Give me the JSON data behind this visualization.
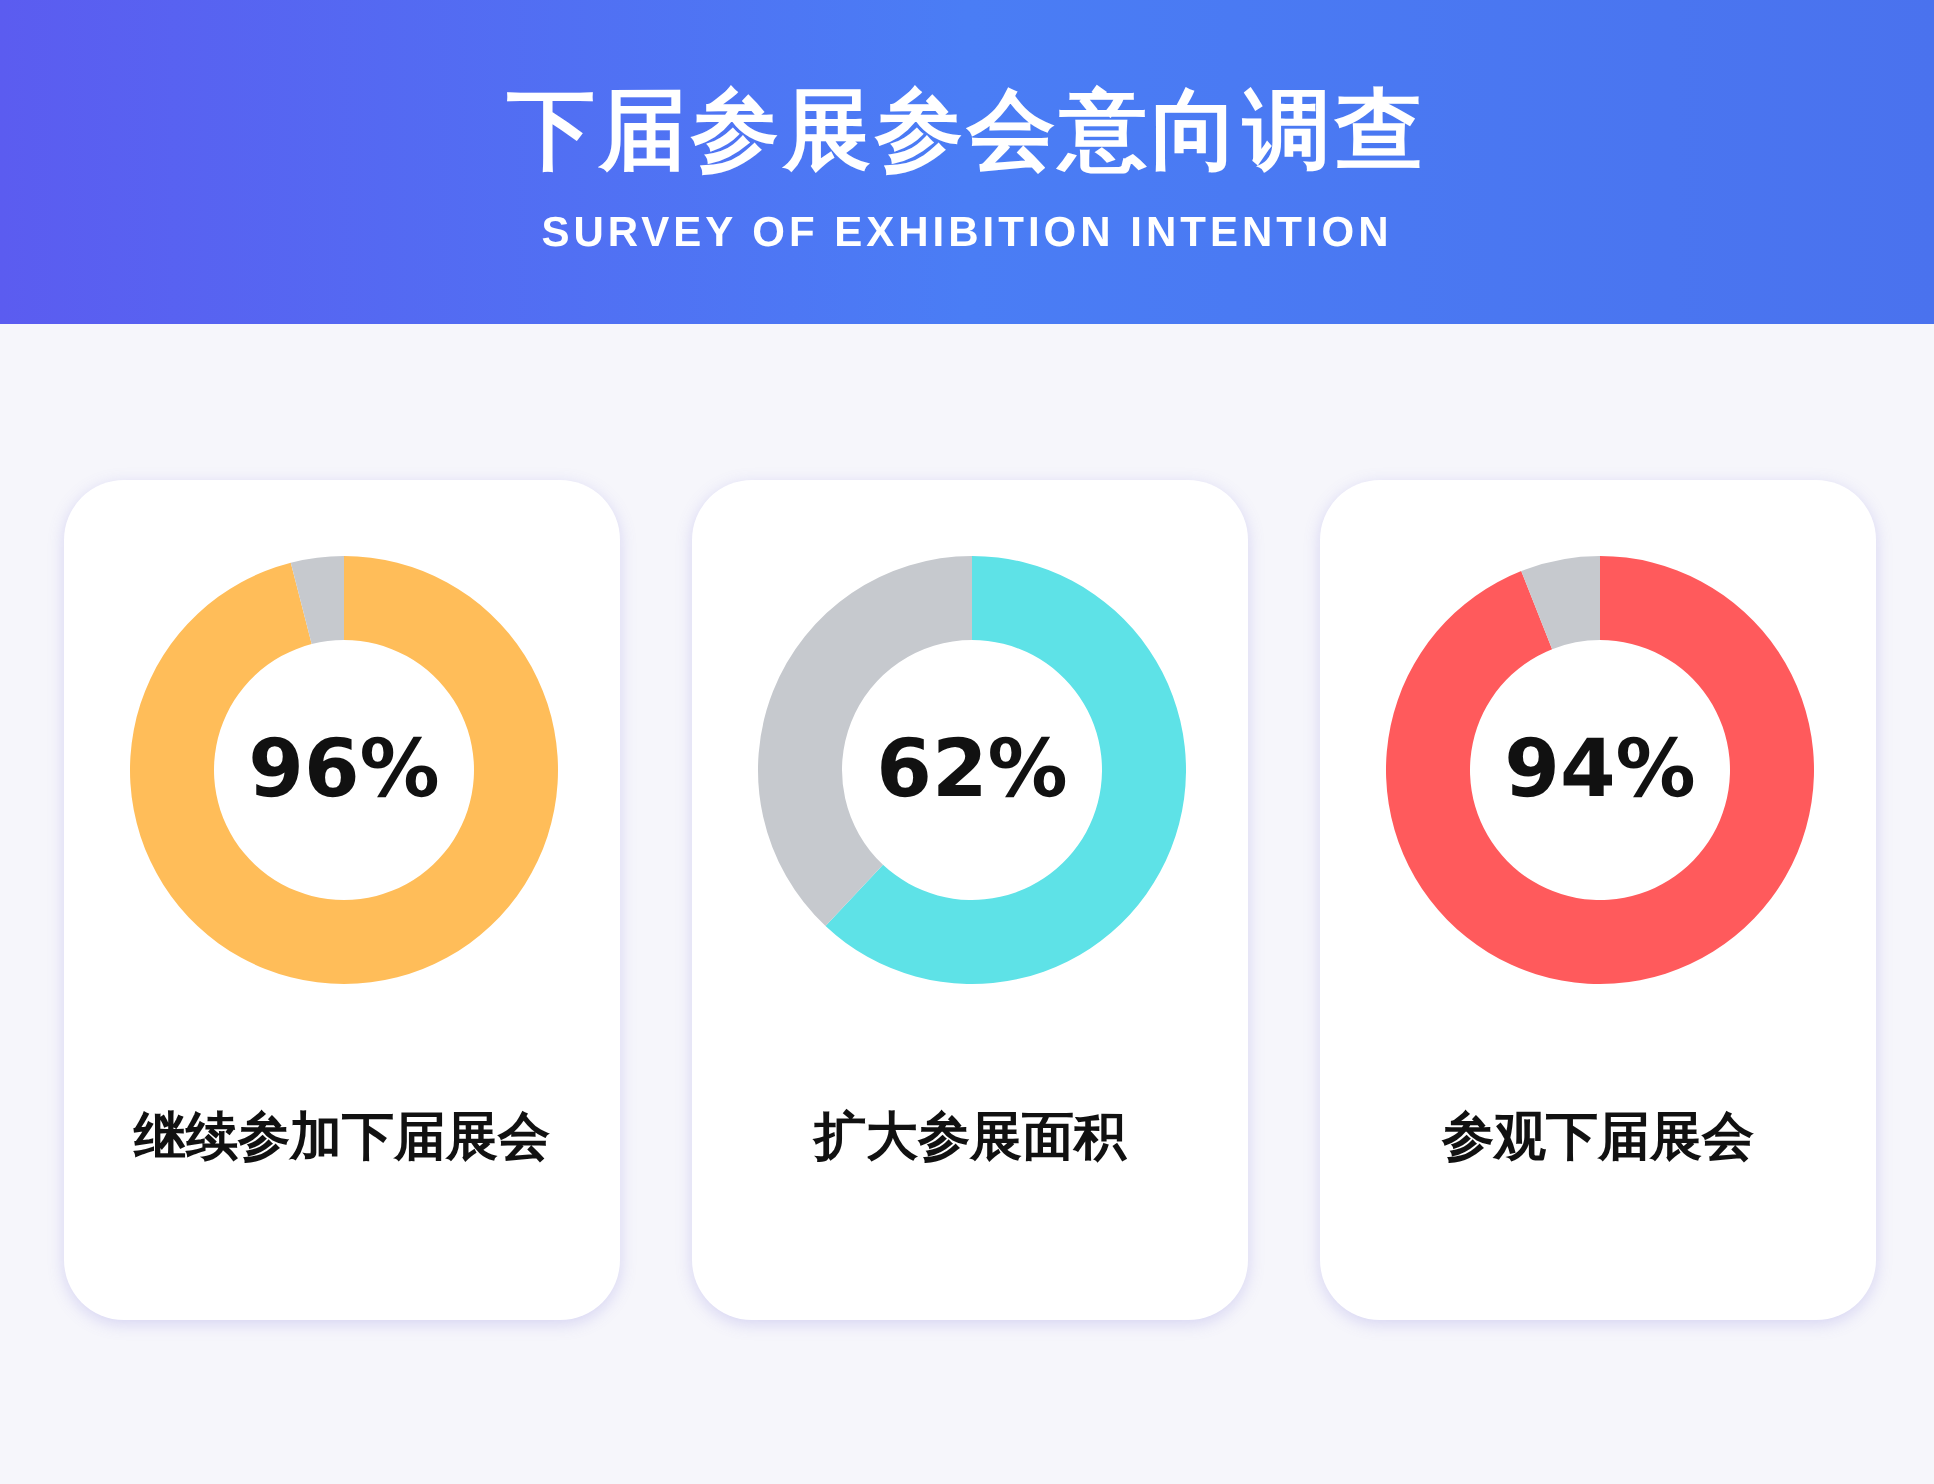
{
  "chart_data": [
    {
      "type": "donut",
      "categories": [
        "继续参加下届展会",
        null
      ],
      "values": [
        96,
        4
      ],
      "colors": [
        "#ffbd59",
        "#c6c9ce"
      ],
      "value_labels": [
        "96%",
        null
      ]
    },
    {
      "type": "donut",
      "title": "下届参展参会意向调查",
      "subtitle": "SURVEY OF EXHIBITION INTENTION",
      "categories": [
        "扩大参展面积",
        null
      ],
      "values": [
        62,
        38
      ],
      "colors": [
        "#5ee2e7",
        "#c6c9ce"
      ],
      "value_labels": [
        "62%",
        null
      ]
    },
    {
      "type": "donut",
      "categories": [
        "参观下届展会",
        null
      ],
      "values": [
        94,
        6
      ],
      "colors": [
        "#ff5a5c",
        "#c6c9ce"
      ],
      "value_labels": [
        "94%",
        null
      ]
    }
  ]
}
